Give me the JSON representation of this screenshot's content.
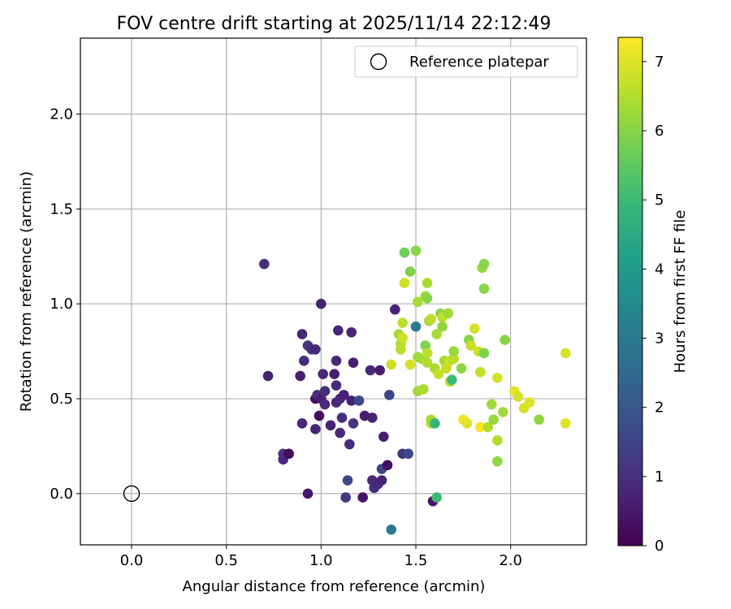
{
  "chart_data": {
    "type": "scatter",
    "title": "FOV centre drift starting at 2025/11/14 22:12:49",
    "xlabel": "Angular distance from reference (arcmin)",
    "ylabel": "Rotation from reference (arcmin)",
    "xlim": [
      -0.27,
      2.4
    ],
    "ylim": [
      -0.27,
      2.4
    ],
    "xticks": [
      0.0,
      0.5,
      1.0,
      1.5,
      2.0
    ],
    "xtick_labels": [
      "0.0",
      "0.5",
      "1.0",
      "1.5",
      "2.0"
    ],
    "yticks": [
      0.0,
      0.5,
      1.0,
      1.5,
      2.0
    ],
    "ytick_labels": [
      "0.0",
      "0.5",
      "1.0",
      "1.5",
      "2.0"
    ],
    "grid": true,
    "legend": {
      "position": "top-right",
      "label": "Reference platepar"
    },
    "reference_point": {
      "x": 0.0,
      "y": 0.0
    },
    "colorbar": {
      "label": "Hours from first FF file",
      "range": [
        0,
        7.35
      ],
      "ticks": [
        0,
        1,
        2,
        3,
        4,
        5,
        6,
        7
      ],
      "tick_labels": [
        "0",
        "1",
        "2",
        "3",
        "4",
        "5",
        "6",
        "7"
      ],
      "colormap": "viridis",
      "stops": [
        "#440154",
        "#482878",
        "#3e4989",
        "#31688e",
        "#26828e",
        "#1f9e89",
        "#35b779",
        "#6ece58",
        "#b5de2b",
        "#fde725"
      ]
    },
    "points": [
      {
        "x": 0.7,
        "y": 1.21,
        "t": 1.0
      },
      {
        "x": 0.72,
        "y": 0.62,
        "t": 0.7
      },
      {
        "x": 0.8,
        "y": 0.21,
        "t": 1.2
      },
      {
        "x": 0.8,
        "y": 0.18,
        "t": 0.9
      },
      {
        "x": 0.83,
        "y": 0.21,
        "t": 0.2
      },
      {
        "x": 0.89,
        "y": 0.62,
        "t": 0.6
      },
      {
        "x": 0.9,
        "y": 0.84,
        "t": 0.8
      },
      {
        "x": 0.9,
        "y": 0.37,
        "t": 0.8
      },
      {
        "x": 0.91,
        "y": 0.7,
        "t": 0.9
      },
      {
        "x": 0.93,
        "y": 0.0,
        "t": 0.5
      },
      {
        "x": 0.93,
        "y": 0.78,
        "t": 1.2
      },
      {
        "x": 0.95,
        "y": 0.76,
        "t": 1.0
      },
      {
        "x": 0.97,
        "y": 0.76,
        "t": 0.8
      },
      {
        "x": 0.97,
        "y": 0.5,
        "t": 0.3
      },
      {
        "x": 0.97,
        "y": 0.34,
        "t": 0.8
      },
      {
        "x": 0.98,
        "y": 0.52,
        "t": 1.0
      },
      {
        "x": 0.99,
        "y": 0.41,
        "t": 0.2
      },
      {
        "x": 1.0,
        "y": 1.0,
        "t": 0.7
      },
      {
        "x": 1.0,
        "y": 0.5,
        "t": 0.6
      },
      {
        "x": 1.01,
        "y": 0.63,
        "t": 0.8
      },
      {
        "x": 1.02,
        "y": 0.54,
        "t": 1.0
      },
      {
        "x": 1.02,
        "y": 0.47,
        "t": 0.9
      },
      {
        "x": 1.05,
        "y": 0.36,
        "t": 0.7
      },
      {
        "x": 1.07,
        "y": 0.63,
        "t": 0.6
      },
      {
        "x": 1.08,
        "y": 0.57,
        "t": 0.9
      },
      {
        "x": 1.08,
        "y": 0.7,
        "t": 0.8
      },
      {
        "x": 1.08,
        "y": 0.48,
        "t": 0.9
      },
      {
        "x": 1.09,
        "y": 0.86,
        "t": 0.8
      },
      {
        "x": 1.1,
        "y": 0.32,
        "t": 0.9
      },
      {
        "x": 1.1,
        "y": 0.5,
        "t": 0.9
      },
      {
        "x": 1.11,
        "y": 0.4,
        "t": 1.0
      },
      {
        "x": 1.12,
        "y": 0.52,
        "t": 0.7
      },
      {
        "x": 1.13,
        "y": -0.02,
        "t": 1.2
      },
      {
        "x": 1.14,
        "y": 0.07,
        "t": 1.6
      },
      {
        "x": 1.15,
        "y": 0.26,
        "t": 1.0
      },
      {
        "x": 1.16,
        "y": 0.85,
        "t": 0.8
      },
      {
        "x": 1.16,
        "y": 0.49,
        "t": 0.7
      },
      {
        "x": 1.17,
        "y": 0.37,
        "t": 1.1
      },
      {
        "x": 1.17,
        "y": 0.69,
        "t": 0.7
      },
      {
        "x": 1.2,
        "y": 0.49,
        "t": 1.6
      },
      {
        "x": 1.22,
        "y": -0.02,
        "t": 0.4
      },
      {
        "x": 1.23,
        "y": 0.41,
        "t": 0.6
      },
      {
        "x": 1.26,
        "y": 0.65,
        "t": 0.9
      },
      {
        "x": 1.27,
        "y": 0.4,
        "t": 0.7
      },
      {
        "x": 1.27,
        "y": 0.07,
        "t": 0.9
      },
      {
        "x": 1.28,
        "y": 0.03,
        "t": 1.0
      },
      {
        "x": 1.3,
        "y": 0.05,
        "t": 0.8
      },
      {
        "x": 1.31,
        "y": 0.65,
        "t": 0.6
      },
      {
        "x": 1.32,
        "y": 0.13,
        "t": 1.5
      },
      {
        "x": 1.32,
        "y": 0.07,
        "t": 0.7
      },
      {
        "x": 1.33,
        "y": 0.3,
        "t": 0.6
      },
      {
        "x": 1.35,
        "y": 0.15,
        "t": 0.3
      },
      {
        "x": 1.36,
        "y": 0.52,
        "t": 1.5
      },
      {
        "x": 1.37,
        "y": 0.68,
        "t": 6.8
      },
      {
        "x": 1.37,
        "y": -0.19,
        "t": 3.0
      },
      {
        "x": 1.39,
        "y": 0.97,
        "t": 0.7
      },
      {
        "x": 1.41,
        "y": 0.84,
        "t": 6.4
      },
      {
        "x": 1.42,
        "y": 0.79,
        "t": 6.4
      },
      {
        "x": 1.42,
        "y": 0.76,
        "t": 6.6
      },
      {
        "x": 1.43,
        "y": 0.9,
        "t": 6.6
      },
      {
        "x": 1.43,
        "y": 0.82,
        "t": 6.8
      },
      {
        "x": 1.43,
        "y": 0.21,
        "t": 1.1
      },
      {
        "x": 1.44,
        "y": 1.27,
        "t": 5.7
      },
      {
        "x": 1.44,
        "y": 1.11,
        "t": 6.8
      },
      {
        "x": 1.46,
        "y": 0.21,
        "t": 1.6
      },
      {
        "x": 1.47,
        "y": 1.17,
        "t": 5.9
      },
      {
        "x": 1.47,
        "y": 0.68,
        "t": 6.9
      },
      {
        "x": 1.5,
        "y": 1.28,
        "t": 6.0
      },
      {
        "x": 1.5,
        "y": 0.88,
        "t": 3.0
      },
      {
        "x": 1.51,
        "y": 0.72,
        "t": 6.3
      },
      {
        "x": 1.51,
        "y": 0.54,
        "t": 6.3
      },
      {
        "x": 1.51,
        "y": 1.01,
        "t": 6.4
      },
      {
        "x": 1.53,
        "y": 0.71,
        "t": 6.3
      },
      {
        "x": 1.54,
        "y": 0.55,
        "t": 6.4
      },
      {
        "x": 1.55,
        "y": 1.04,
        "t": 6.3
      },
      {
        "x": 1.55,
        "y": 0.78,
        "t": 5.9
      },
      {
        "x": 1.56,
        "y": 0.74,
        "t": 6.6
      },
      {
        "x": 1.56,
        "y": 0.69,
        "t": 6.5
      },
      {
        "x": 1.56,
        "y": 1.11,
        "t": 6.4
      },
      {
        "x": 1.56,
        "y": 1.03,
        "t": 6.0
      },
      {
        "x": 1.57,
        "y": 0.91,
        "t": 6.3
      },
      {
        "x": 1.58,
        "y": 0.92,
        "t": 6.6
      },
      {
        "x": 1.58,
        "y": 0.37,
        "t": 6.6
      },
      {
        "x": 1.58,
        "y": 0.39,
        "t": 6.4
      },
      {
        "x": 1.59,
        "y": -0.04,
        "t": 0.4
      },
      {
        "x": 1.6,
        "y": 0.66,
        "t": 6.4
      },
      {
        "x": 1.6,
        "y": 0.37,
        "t": 4.8
      },
      {
        "x": 1.61,
        "y": 0.84,
        "t": 6.4
      },
      {
        "x": 1.61,
        "y": -0.02,
        "t": 5.0
      },
      {
        "x": 1.62,
        "y": 0.63,
        "t": 6.7
      },
      {
        "x": 1.63,
        "y": 0.95,
        "t": 6.1
      },
      {
        "x": 1.64,
        "y": 0.93,
        "t": 6.6
      },
      {
        "x": 1.64,
        "y": 0.88,
        "t": 6.1
      },
      {
        "x": 1.65,
        "y": 0.7,
        "t": 6.4
      },
      {
        "x": 1.66,
        "y": 0.66,
        "t": 6.7
      },
      {
        "x": 1.67,
        "y": 0.95,
        "t": 6.3
      },
      {
        "x": 1.68,
        "y": 0.7,
        "t": 6.7
      },
      {
        "x": 1.68,
        "y": 0.59,
        "t": 6.6
      },
      {
        "x": 1.69,
        "y": 0.6,
        "t": 5.0
      },
      {
        "x": 1.7,
        "y": 0.71,
        "t": 6.6
      },
      {
        "x": 1.7,
        "y": 0.75,
        "t": 6.2
      },
      {
        "x": 1.74,
        "y": 0.66,
        "t": 6.1
      },
      {
        "x": 1.75,
        "y": 0.39,
        "t": 7.2
      },
      {
        "x": 1.77,
        "y": 0.37,
        "t": 7.0
      },
      {
        "x": 1.78,
        "y": 0.81,
        "t": 6.0
      },
      {
        "x": 1.79,
        "y": 0.78,
        "t": 6.7
      },
      {
        "x": 1.81,
        "y": 0.87,
        "t": 6.9
      },
      {
        "x": 1.83,
        "y": 0.75,
        "t": 6.8
      },
      {
        "x": 1.84,
        "y": 0.64,
        "t": 6.7
      },
      {
        "x": 1.84,
        "y": 0.35,
        "t": 7.3
      },
      {
        "x": 1.85,
        "y": 1.19,
        "t": 6.2
      },
      {
        "x": 1.86,
        "y": 1.21,
        "t": 6.0
      },
      {
        "x": 1.86,
        "y": 1.08,
        "t": 6.0
      },
      {
        "x": 1.86,
        "y": 0.74,
        "t": 5.9
      },
      {
        "x": 1.88,
        "y": 0.35,
        "t": 6.5
      },
      {
        "x": 1.9,
        "y": 0.47,
        "t": 6.3
      },
      {
        "x": 1.91,
        "y": 0.39,
        "t": 6.2
      },
      {
        "x": 1.93,
        "y": 0.61,
        "t": 6.9
      },
      {
        "x": 1.93,
        "y": 0.28,
        "t": 6.5
      },
      {
        "x": 1.93,
        "y": 0.17,
        "t": 6.1
      },
      {
        "x": 1.96,
        "y": 0.43,
        "t": 6.3
      },
      {
        "x": 1.97,
        "y": 0.81,
        "t": 6.0
      },
      {
        "x": 2.02,
        "y": 0.54,
        "t": 7.1
      },
      {
        "x": 2.04,
        "y": 0.51,
        "t": 6.9
      },
      {
        "x": 2.07,
        "y": 0.45,
        "t": 6.9
      },
      {
        "x": 2.1,
        "y": 0.48,
        "t": 7.0
      },
      {
        "x": 2.15,
        "y": 0.39,
        "t": 6.1
      },
      {
        "x": 2.29,
        "y": 0.74,
        "t": 6.9
      },
      {
        "x": 2.29,
        "y": 0.37,
        "t": 7.0
      }
    ]
  }
}
